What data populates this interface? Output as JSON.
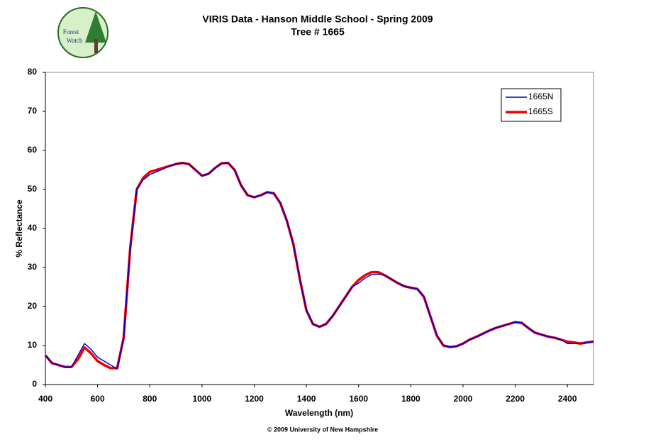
{
  "logo": {
    "line1": "Forest",
    "line2": "Watch"
  },
  "footer": "© 2009 University of New Hampshire",
  "chart_data": {
    "type": "line",
    "title": "VIRIS Data - Hanson Middle School - Spring 2009",
    "subtitle": "Tree # 1665",
    "x_label": "Wavelength (nm)",
    "y_label": "% Reflectance",
    "xlim": [
      400,
      2500
    ],
    "xticks": [
      400,
      600,
      800,
      1000,
      1200,
      1400,
      1600,
      1800,
      2000,
      2200,
      2400
    ],
    "ylim": [
      0,
      80
    ],
    "yticks": [
      0,
      10,
      20,
      30,
      40,
      50,
      60,
      70,
      80
    ],
    "grid": false,
    "legend": "upper right",
    "x": [
      400,
      425,
      450,
      475,
      500,
      525,
      550,
      575,
      600,
      625,
      650,
      675,
      700,
      725,
      750,
      775,
      800,
      825,
      850,
      875,
      900,
      925,
      950,
      975,
      1000,
      1025,
      1050,
      1075,
      1100,
      1125,
      1150,
      1175,
      1200,
      1225,
      1250,
      1275,
      1300,
      1325,
      1350,
      1375,
      1400,
      1425,
      1450,
      1475,
      1500,
      1525,
      1550,
      1575,
      1600,
      1625,
      1650,
      1675,
      1700,
      1725,
      1750,
      1775,
      1800,
      1825,
      1850,
      1875,
      1900,
      1925,
      1950,
      1975,
      2000,
      2025,
      2050,
      2075,
      2100,
      2125,
      2150,
      2175,
      2200,
      2225,
      2250,
      2275,
      2300,
      2325,
      2350,
      2375,
      2400,
      2425,
      2450,
      2475,
      2500
    ],
    "series": [
      {
        "name": "1665N",
        "color": "#0000cc",
        "width": 1.5,
        "values": [
          7.5,
          5.5,
          5,
          4.5,
          4.5,
          7.5,
          10.5,
          9,
          7,
          6,
          5,
          4,
          12,
          35,
          50,
          52.5,
          53.8,
          54.5,
          55.2,
          56,
          56.5,
          56.8,
          56.5,
          55,
          53.5,
          54,
          55.5,
          56.7,
          56.8,
          55,
          51,
          48.5,
          48,
          48.5,
          49.3,
          49,
          46.5,
          42,
          36,
          27,
          19,
          15.5,
          14.8,
          15.5,
          17.5,
          20,
          22.5,
          25,
          26,
          27.3,
          28.2,
          28.3,
          28,
          27,
          26,
          25.2,
          24.8,
          24.5,
          22.5,
          17.5,
          12.5,
          10,
          9.6,
          9.8,
          10.5,
          11.5,
          12.2,
          13,
          13.8,
          14.5,
          15,
          15.5,
          16,
          15.8,
          14.5,
          13.3,
          12.8,
          12.3,
          12,
          11.5,
          10.5,
          10.5,
          10.5,
          10.8,
          11
        ]
      },
      {
        "name": "1665S",
        "color": "#ee0000",
        "width": 3.5,
        "values": [
          7.5,
          5.5,
          5,
          4.5,
          4.5,
          6.5,
          9.5,
          8,
          6,
          5,
          4.2,
          4.2,
          12,
          35,
          50,
          53,
          54.5,
          55,
          55.5,
          56,
          56.5,
          56.8,
          56.5,
          55,
          53.5,
          54,
          55.5,
          56.7,
          56.8,
          55,
          51,
          48.5,
          48,
          48.5,
          49.3,
          49,
          46.5,
          42,
          36,
          27,
          19,
          15.5,
          14.8,
          15.5,
          17.5,
          20,
          22.5,
          25,
          26.8,
          28,
          28.8,
          28.8,
          28,
          27,
          26,
          25.2,
          24.8,
          24.5,
          22.5,
          17.5,
          12.5,
          10,
          9.6,
          9.8,
          10.5,
          11.5,
          12.2,
          13,
          13.8,
          14.5,
          15,
          15.5,
          16,
          15.8,
          14.5,
          13.3,
          12.8,
          12.3,
          12,
          11.5,
          11,
          10.8,
          10.5,
          10.8,
          11
        ]
      }
    ]
  }
}
